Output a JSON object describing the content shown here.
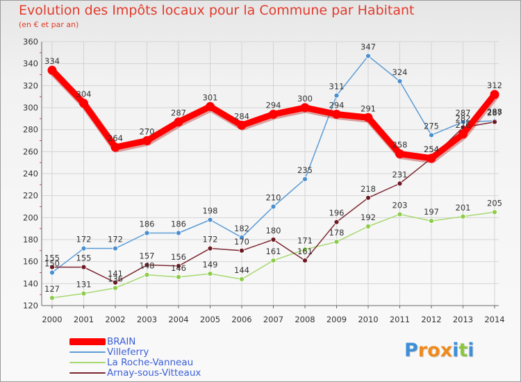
{
  "title": "Evolution des Impôts locaux pour la Commune par Habitant",
  "subtitle": "(en € et par an)",
  "logo": {
    "text": "Proxiti",
    "letters": [
      "P",
      "r",
      "o",
      "x",
      "i",
      "t",
      "i"
    ],
    "letter_colors": [
      "#3d8fd8",
      "#f08a1c",
      "#f08a1c",
      "#f08a1c",
      "#3d8fd8",
      "#8cc63f",
      "#3d8fd8"
    ]
  },
  "colors": {
    "grid": "#d3d3d3",
    "axis_label": "#333333",
    "series": [
      "#ff0000",
      "#5b9bd5",
      "#a6d86e",
      "#7b2530"
    ],
    "markers": [
      "#ff0000",
      "#4a8fd0",
      "#8dcc4a",
      "#6e1a22"
    ]
  },
  "chart_data": {
    "type": "line",
    "title": "Evolution des Impôts locaux pour la Commune par Habitant",
    "subtitle": "(en € et par an)",
    "x": [
      "2000",
      "2001",
      "2002",
      "2003",
      "2004",
      "2005",
      "2006",
      "2007",
      "2008",
      "2009",
      "2010",
      "2011",
      "2012",
      "2013",
      "2014"
    ],
    "ylim": [
      120,
      360
    ],
    "yticks": [
      120,
      140,
      160,
      180,
      200,
      220,
      240,
      260,
      280,
      300,
      320,
      340,
      360
    ],
    "grid": true,
    "legend_position": "bottom-left",
    "series": [
      {
        "name": "BRAIN",
        "values": [
          334,
          304,
          264,
          270,
          287,
          301,
          284,
          294,
          300,
          294,
          291,
          258,
          254,
          276,
          312
        ]
      },
      {
        "name": "Villeferry",
        "values": [
          150,
          172,
          172,
          186,
          186,
          198,
          182,
          210,
          235,
          311,
          347,
          324,
          275,
          287,
          288
        ]
      },
      {
        "name": "La Roche-Vanneau",
        "values": [
          127,
          131,
          136,
          148,
          146,
          149,
          144,
          161,
          171,
          178,
          192,
          203,
          197,
          201,
          205
        ]
      },
      {
        "name": "Arnay-sous-Vitteaux",
        "values": [
          155,
          155,
          141,
          157,
          156,
          172,
          170,
          180,
          161,
          196,
          218,
          231,
          254,
          282,
          287
        ]
      }
    ],
    "data_labels": [
      [
        334,
        304,
        264,
        270,
        287,
        301,
        284,
        294,
        300,
        294,
        291,
        258,
        254,
        276,
        312
      ],
      [
        150,
        172,
        172,
        186,
        186,
        198,
        182,
        210,
        235,
        311,
        347,
        324,
        275,
        287,
        288
      ],
      [
        127,
        131,
        136,
        148,
        146,
        149,
        144,
        161,
        171,
        178,
        192,
        203,
        197,
        201,
        205
      ],
      [
        155,
        155,
        141,
        157,
        156,
        172,
        170,
        180,
        161,
        196,
        218,
        231,
        254,
        282,
        287
      ]
    ]
  }
}
